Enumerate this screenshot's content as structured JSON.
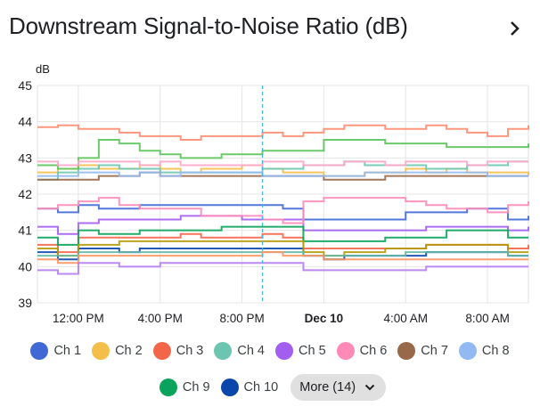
{
  "header": {
    "title": "Downstream Signal-to-Noise Ratio (dB)",
    "next_icon": "chevron-right-icon"
  },
  "chart_data": {
    "type": "line",
    "step": true,
    "title": "Downstream Signal-to-Noise Ratio (dB)",
    "ylabel": "dB",
    "ylim": [
      39,
      45
    ],
    "yticks": [
      "39",
      "40",
      "41",
      "42",
      "43",
      "44",
      "45"
    ],
    "x_start": "10:00 AM",
    "x_end": "10:00 AM (Dec 10)",
    "x_hours": [
      "10 AM",
      "11 AM",
      "12 PM",
      "1 PM",
      "2 PM",
      "3 PM",
      "4 PM",
      "5 PM",
      "6 PM",
      "7 PM",
      "8 PM",
      "9 PM",
      "10 PM",
      "11 PM",
      "12 AM",
      "1 AM",
      "2 AM",
      "3 AM",
      "4 AM",
      "5 AM",
      "6 AM",
      "7 AM",
      "8 AM",
      "9 AM",
      "10 AM"
    ],
    "xticks": [
      {
        "label": "12:00 PM",
        "hour": 2,
        "bold": false
      },
      {
        "label": "4:00 PM",
        "hour": 6,
        "bold": false
      },
      {
        "label": "8:00 PM",
        "hour": 10,
        "bold": false
      },
      {
        "label": "Dec 10",
        "hour": 14,
        "bold": true
      },
      {
        "label": "4:00 AM",
        "hour": 18,
        "bold": false
      },
      {
        "label": "8:00 AM",
        "hour": 22,
        "bold": false
      }
    ],
    "cursor_hour": 11,
    "grid": true,
    "legend_position": "bottom",
    "series": [
      {
        "name": "Ch 1",
        "color": "#4169d6",
        "values": [
          41.6,
          41.5,
          41.7,
          41.6,
          41.6,
          41.7,
          41.7,
          41.7,
          41.7,
          41.7,
          41.7,
          41.7,
          41.6,
          41.3,
          41.3,
          41.3,
          41.3,
          41.3,
          41.5,
          41.5,
          41.5,
          41.6,
          41.6,
          41.3,
          41.4
        ]
      },
      {
        "name": "Ch 2",
        "color": "#f4be4a",
        "values": [
          42.6,
          42.7,
          42.8,
          42.7,
          42.7,
          42.8,
          42.7,
          42.6,
          42.7,
          42.7,
          42.8,
          42.7,
          42.6,
          42.6,
          42.5,
          42.5,
          42.6,
          42.6,
          42.7,
          42.6,
          42.7,
          42.6,
          42.6,
          42.6,
          42.5
        ]
      },
      {
        "name": "Ch 3",
        "color": "#f4664a",
        "values": [
          40.6,
          40.4,
          40.8,
          40.8,
          40.8,
          40.8,
          40.8,
          40.9,
          40.8,
          40.8,
          40.8,
          40.9,
          40.8,
          40.5,
          40.5,
          40.5,
          40.5,
          40.5,
          40.5,
          40.6,
          40.6,
          40.6,
          40.6,
          40.5,
          40.6
        ]
      },
      {
        "name": "Ch 4",
        "color": "#6cc5b0",
        "values": [
          42.4,
          42.6,
          42.7,
          42.8,
          42.7,
          42.7,
          42.6,
          42.6,
          42.6,
          42.6,
          42.6,
          42.7,
          42.7,
          42.8,
          42.8,
          42.9,
          42.8,
          42.8,
          42.8,
          42.7,
          42.7,
          42.8,
          42.8,
          42.9,
          42.9
        ]
      },
      {
        "name": "Ch 5",
        "color": "#a25eee",
        "values": [
          41.1,
          40.9,
          41.2,
          41.3,
          41.3,
          41.3,
          41.3,
          41.4,
          41.4,
          41.4,
          41.3,
          41.3,
          41.3,
          41.0,
          41.0,
          41.0,
          41.0,
          41.0,
          41.0,
          41.1,
          41.1,
          41.1,
          41.1,
          41.0,
          41.1
        ]
      },
      {
        "name": "Ch 6",
        "color": "#ff8ab8",
        "values": [
          41.6,
          41.7,
          41.8,
          41.9,
          41.7,
          41.6,
          41.6,
          41.6,
          41.4,
          41.4,
          41.4,
          41.3,
          41.2,
          41.8,
          41.9,
          41.9,
          41.9,
          41.9,
          41.8,
          41.7,
          41.6,
          41.6,
          41.5,
          41.7,
          41.8
        ]
      },
      {
        "name": "Ch 7",
        "color": "#97694a",
        "values": [
          42.4,
          42.4,
          42.4,
          42.5,
          42.5,
          42.6,
          42.5,
          42.5,
          42.5,
          42.5,
          42.5,
          42.5,
          42.5,
          42.5,
          42.4,
          42.4,
          42.4,
          42.5,
          42.5,
          42.5,
          42.5,
          42.5,
          42.5,
          42.5,
          42.5
        ]
      },
      {
        "name": "Ch 8",
        "color": "#92b9f2",
        "values": [
          42.5,
          42.5,
          42.6,
          42.6,
          42.5,
          42.6,
          42.5,
          42.6,
          42.6,
          42.6,
          42.6,
          42.5,
          42.5,
          42.5,
          42.5,
          42.5,
          42.6,
          42.6,
          42.6,
          42.6,
          42.6,
          42.6,
          42.5,
          42.5,
          42.5
        ]
      },
      {
        "name": "Ch 9",
        "color": "#0aa35b",
        "values": [
          40.8,
          40.6,
          41.0,
          40.9,
          40.9,
          41.0,
          41.0,
          41.0,
          41.0,
          41.1,
          41.1,
          41.1,
          41.1,
          40.7,
          40.7,
          40.7,
          40.7,
          40.8,
          40.8,
          40.8,
          41.0,
          41.0,
          41.0,
          40.8,
          40.8
        ]
      },
      {
        "name": "Ch 10",
        "color": "#0b47ab",
        "values": [
          40.4,
          40.2,
          40.5,
          40.5,
          40.4,
          40.5,
          40.5,
          40.5,
          40.5,
          40.5,
          40.5,
          40.5,
          40.5,
          40.3,
          40.2,
          40.3,
          40.3,
          40.3,
          40.3,
          40.4,
          40.4,
          40.4,
          40.4,
          40.3,
          40.3
        ]
      },
      {
        "color": "#ff8c70",
        "values": [
          43.85,
          43.9,
          43.8,
          43.8,
          43.7,
          43.6,
          43.6,
          43.5,
          43.6,
          43.6,
          43.6,
          43.7,
          43.6,
          43.7,
          43.8,
          43.9,
          43.9,
          43.8,
          43.8,
          43.9,
          43.8,
          43.7,
          43.6,
          43.8,
          43.9
        ]
      },
      {
        "color": "#5cc45c",
        "values": [
          42.8,
          42.7,
          43.0,
          43.5,
          43.4,
          43.2,
          43.1,
          43.0,
          43.0,
          43.1,
          43.1,
          43.2,
          43.2,
          43.2,
          43.5,
          43.5,
          43.5,
          43.4,
          43.4,
          43.4,
          43.3,
          43.3,
          43.3,
          43.3,
          43.4
        ]
      },
      {
        "color": "#ffa6c9",
        "values": [
          42.9,
          42.8,
          42.9,
          42.9,
          42.9,
          42.8,
          42.9,
          42.8,
          42.8,
          42.8,
          42.8,
          42.9,
          42.9,
          42.8,
          42.8,
          42.9,
          42.9,
          42.8,
          42.9,
          42.9,
          42.9,
          42.8,
          42.9,
          42.9,
          42.9
        ]
      },
      {
        "color": "#b59a0a",
        "values": [
          40.5,
          40.3,
          40.6,
          40.6,
          40.7,
          40.7,
          40.7,
          40.7,
          40.7,
          40.7,
          40.7,
          40.7,
          40.7,
          40.4,
          40.3,
          40.4,
          40.4,
          40.5,
          40.5,
          40.6,
          40.6,
          40.6,
          40.6,
          40.4,
          40.4
        ]
      },
      {
        "color": "#63b8a4",
        "values": [
          40.3,
          40.3,
          40.4,
          40.4,
          40.4,
          40.4,
          40.4,
          40.4,
          40.4,
          40.4,
          40.4,
          40.4,
          40.4,
          40.3,
          40.3,
          40.3,
          40.3,
          40.3,
          40.4,
          40.4,
          40.4,
          40.4,
          40.4,
          40.3,
          40.3
        ]
      },
      {
        "color": "#ff9560",
        "values": [
          40.2,
          40.1,
          40.3,
          40.3,
          40.3,
          40.3,
          40.3,
          40.3,
          40.3,
          40.3,
          40.3,
          40.4,
          40.3,
          40.3,
          40.2,
          40.2,
          40.2,
          40.2,
          40.2,
          40.2,
          40.2,
          40.2,
          40.2,
          40.2,
          40.2
        ]
      },
      {
        "color": "#b57bf2",
        "values": [
          39.9,
          39.8,
          40.1,
          40.1,
          40.0,
          40.0,
          40.1,
          40.1,
          40.1,
          40.1,
          40.1,
          40.1,
          40.1,
          39.9,
          39.9,
          39.9,
          39.9,
          39.9,
          39.9,
          40.0,
          40.0,
          40.0,
          40.0,
          40.0,
          40.0
        ]
      }
    ]
  },
  "legend": {
    "items": [
      {
        "label": "Ch 1",
        "color": "#4169d6"
      },
      {
        "label": "Ch 2",
        "color": "#f4be4a"
      },
      {
        "label": "Ch 3",
        "color": "#f4664a"
      },
      {
        "label": "Ch 4",
        "color": "#6cc5b0"
      },
      {
        "label": "Ch 5",
        "color": "#a25eee"
      },
      {
        "label": "Ch 6",
        "color": "#ff8ab8"
      },
      {
        "label": "Ch 7",
        "color": "#97694a"
      },
      {
        "label": "Ch 8",
        "color": "#92b9f2"
      },
      {
        "label": "Ch 9",
        "color": "#0aa35b"
      },
      {
        "label": "Ch 10",
        "color": "#0b47ab"
      }
    ],
    "more_label": "More (14)",
    "more_icon": "chevron-down-icon"
  }
}
